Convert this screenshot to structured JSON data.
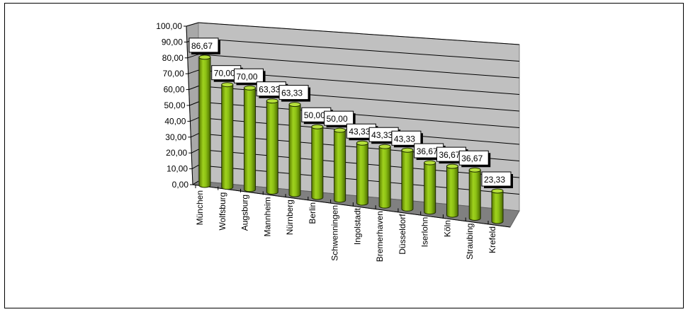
{
  "chart_data": {
    "type": "bar",
    "style": "3d-cylinder",
    "title": "",
    "xlabel": "",
    "ylabel": "",
    "ylim": [
      0,
      100
    ],
    "yticks": [
      "0,00",
      "10,00",
      "20,00",
      "30,00",
      "40,00",
      "50,00",
      "60,00",
      "70,00",
      "80,00",
      "90,00",
      "100,00"
    ],
    "grid": true,
    "legend": "none",
    "categories": [
      "München",
      "Wolfsburg",
      "Augsburg",
      "Mannheim",
      "Nürnberg",
      "Berlin",
      "Schwenningen",
      "Ingolstadt",
      "Bremerhaven",
      "Düsseldorf",
      "Iserlohn",
      "Köln",
      "Straubing",
      "Krefeld"
    ],
    "values": [
      86.67,
      70.0,
      70.0,
      63.33,
      63.33,
      50.0,
      50.0,
      43.33,
      43.33,
      43.33,
      36.67,
      36.67,
      36.67,
      23.33
    ],
    "data_labels": [
      "86,67",
      "70,00",
      "70,00",
      "63,33",
      "63,33",
      "50,00",
      "50,00",
      "43,33",
      "43,33",
      "43,33",
      "36,67",
      "36,67",
      "36,67",
      "23,33"
    ],
    "colors": {
      "bar": "#8cc014",
      "bar_dark": "#4d6e00",
      "wall": "#c0c0c0",
      "floor": "#808080"
    }
  }
}
